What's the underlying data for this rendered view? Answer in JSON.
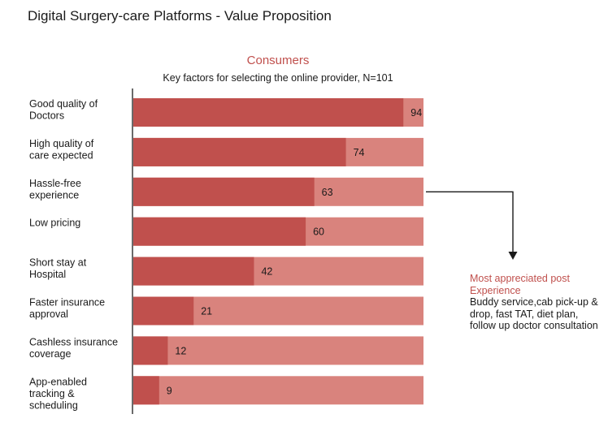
{
  "page": {
    "title": "Digital Surgery-care Platforms - Value Proposition"
  },
  "chart_data": {
    "type": "bar",
    "orientation": "horizontal",
    "stacked_with_total": true,
    "title": "Consumers",
    "subtitle": "Key factors for selecting the online provider, N=101",
    "total": 101,
    "categories": [
      [
        "Good quality of",
        "Doctors"
      ],
      [
        "High quality of",
        "care expected"
      ],
      [
        "Hassle-free",
        "experience"
      ],
      [
        "Low pricing"
      ],
      [
        "Short stay at",
        "Hospital"
      ],
      [
        "Faster insurance",
        "approval"
      ],
      [
        "Cashless insurance",
        "coverage"
      ],
      [
        "App-enabled",
        "tracking &",
        "scheduling"
      ]
    ],
    "values": [
      94,
      74,
      63,
      60,
      42,
      21,
      12,
      9
    ],
    "xlim": [
      0,
      101
    ],
    "grid": false,
    "colors": {
      "value": "#c0504d",
      "remainder": "#d9837d",
      "axis": "#1a1a1a",
      "title": "#c0504d"
    }
  },
  "callout": {
    "title": "Most appreciated post Experience",
    "body": "Buddy service,cab pick-up & drop, fast TAT, diet plan, follow up doctor consultation",
    "points_to_category_index": 2
  }
}
